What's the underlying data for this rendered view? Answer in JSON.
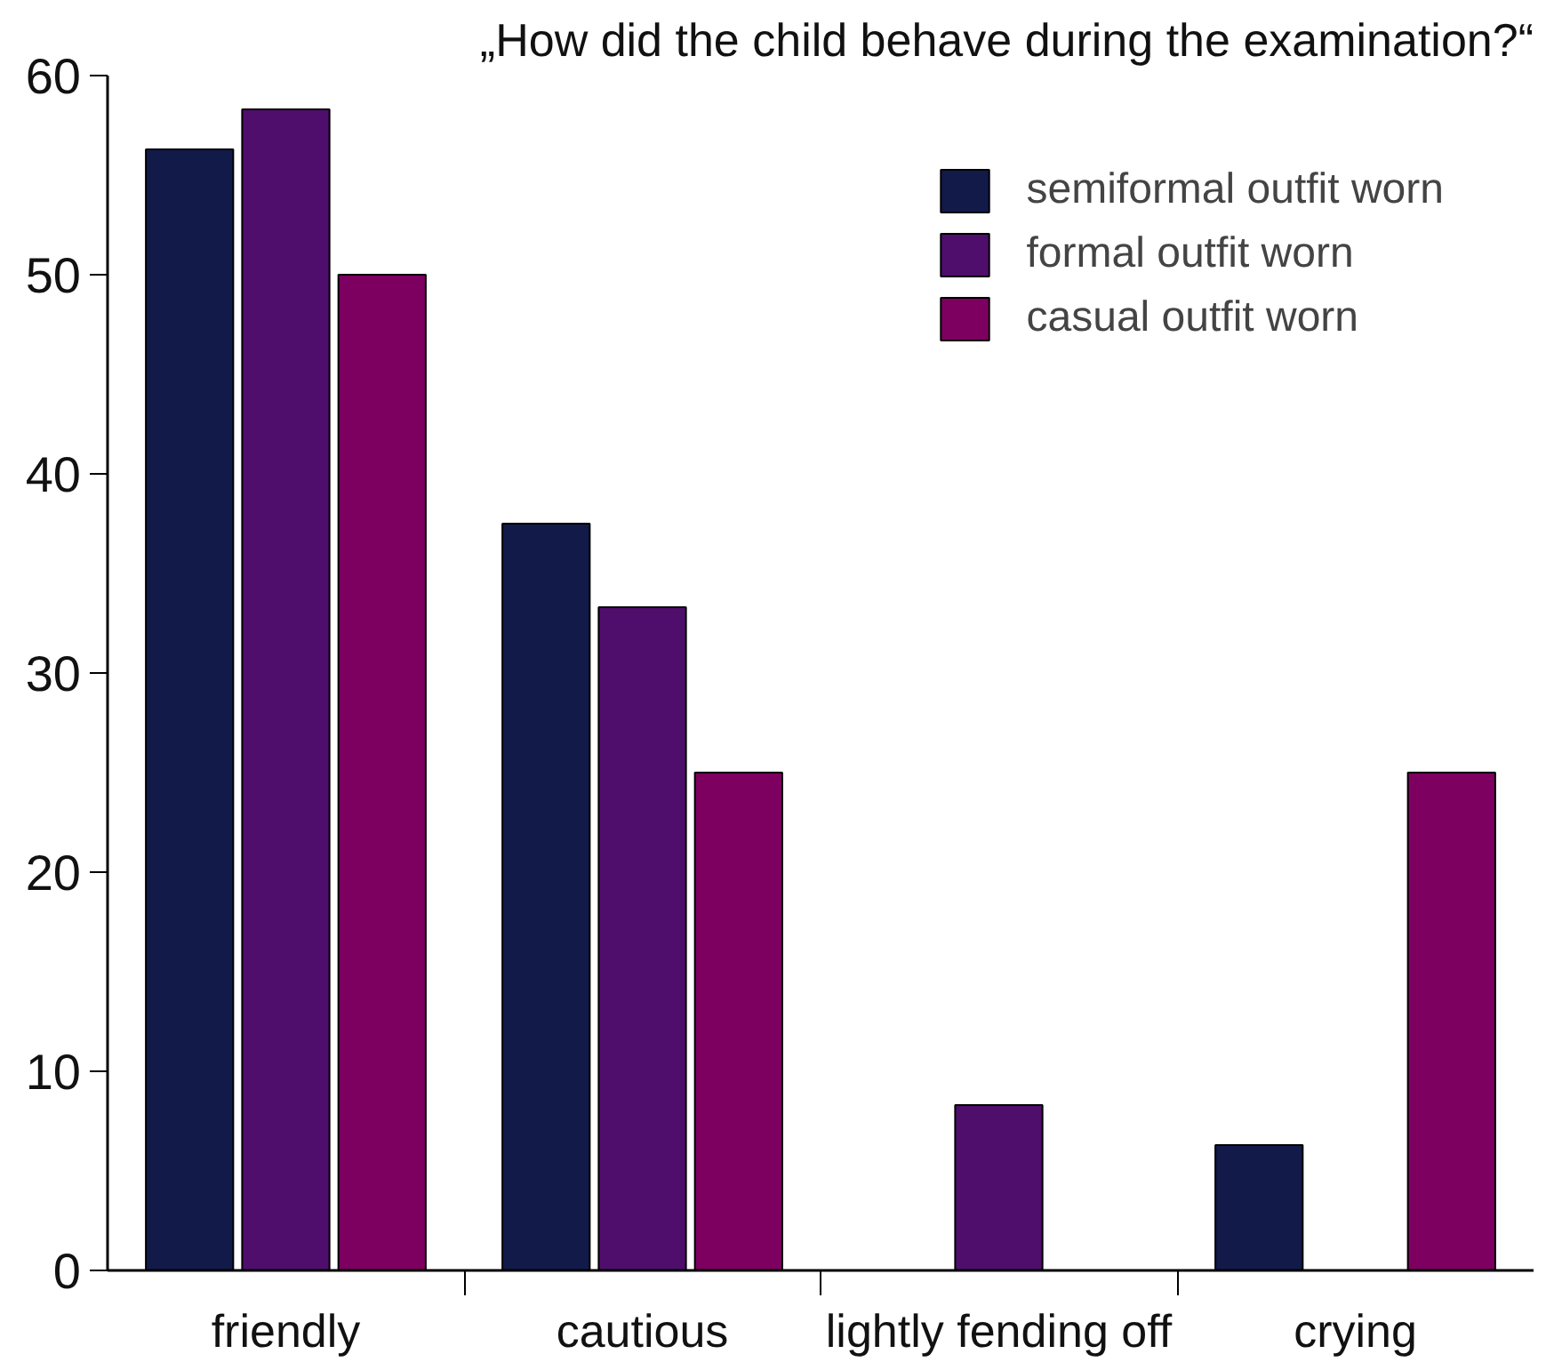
{
  "chart_data": {
    "type": "bar",
    "title": "„How did the child behave during the examination?“",
    "categories": [
      "friendly",
      "cautious",
      "lightly fending off",
      "crying"
    ],
    "series": [
      {
        "name": "semiformal outfit worn",
        "color": "#121a4a",
        "values": [
          56.3,
          37.5,
          null,
          6.3
        ]
      },
      {
        "name": "formal outfit worn",
        "color": "#4f0e6b",
        "values": [
          58.3,
          33.3,
          8.3,
          null
        ]
      },
      {
        "name": "casual outfit worn",
        "color": "#7d0060",
        "values": [
          50,
          25,
          null,
          25
        ]
      }
    ],
    "ylim": [
      0,
      60
    ],
    "yticks": [
      0,
      10,
      20,
      30,
      40,
      50,
      60
    ],
    "grid": false,
    "legend": "top right"
  }
}
